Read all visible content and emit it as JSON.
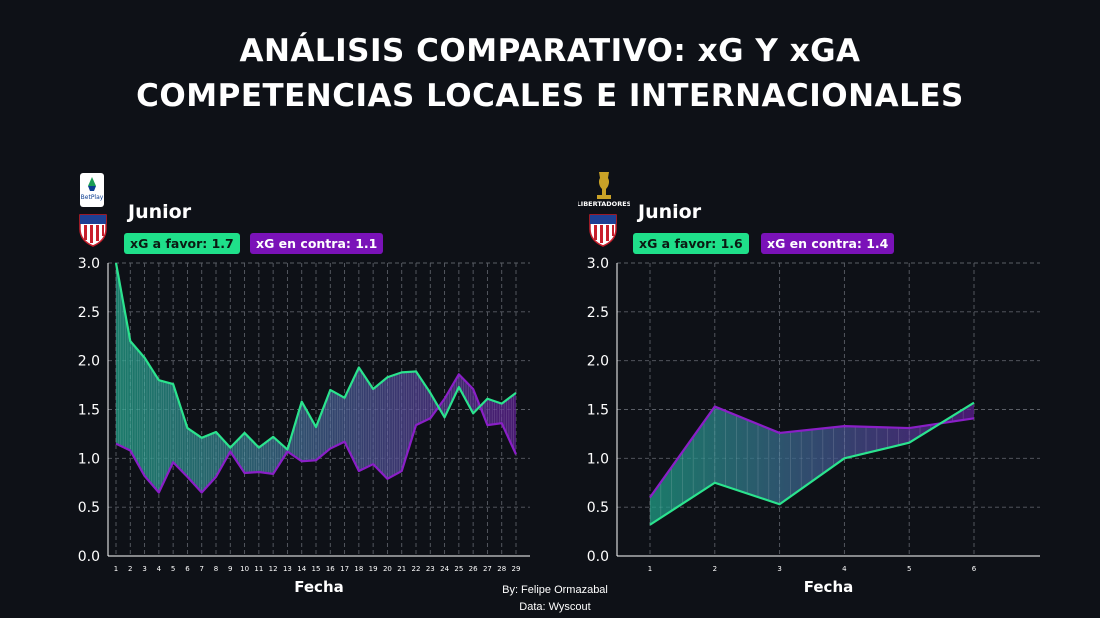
{
  "title_line1": "ANÁLISIS COMPARATIVO: xG Y xGA",
  "title_line2": "COMPETENCIAS LOCALES E INTERNACIONALES",
  "credits": {
    "by": "By: Felipe Ormazabal",
    "data": "Data: Wyscout"
  },
  "colors": {
    "favor": "#2be38e",
    "contra": "#8a1fc7",
    "background": "#0e1117",
    "fill_favor": "#1f9e86",
    "fill_contra": "#5b1d8f"
  },
  "icons": {
    "left_competition": "liga-betplay-logo",
    "right_competition": "copa-libertadores-trophy-logo",
    "team": "junior-crest-logo"
  },
  "logo_text": {
    "liga": "BetPlay",
    "libertadores": "LIBERTADORES"
  },
  "chart_data": [
    {
      "type": "line",
      "team": "Junior",
      "badge_favor": "xG a favor: 1.7",
      "badge_contra": "xG en contra: 1.1",
      "xlabel": "Fecha",
      "ylabel": "",
      "ylim": [
        0,
        3
      ],
      "yticks": [
        "0.0",
        "0.5",
        "1.0",
        "1.5",
        "2.0",
        "2.5",
        "3.0"
      ],
      "x": [
        1,
        2,
        3,
        4,
        5,
        6,
        7,
        8,
        9,
        10,
        11,
        12,
        13,
        14,
        15,
        16,
        17,
        18,
        19,
        20,
        21,
        22,
        23,
        24,
        25,
        26,
        27,
        28,
        29
      ],
      "series": [
        {
          "key": "favor",
          "values": [
            3.0,
            2.2,
            2.03,
            1.8,
            1.76,
            1.31,
            1.21,
            1.27,
            1.11,
            1.26,
            1.11,
            1.22,
            1.09,
            1.58,
            1.32,
            1.7,
            1.62,
            1.93,
            1.71,
            1.83,
            1.88,
            1.89,
            1.67,
            1.42,
            1.73,
            1.46,
            1.61,
            1.56,
            1.67
          ]
        },
        {
          "key": "contra",
          "values": [
            1.15,
            1.08,
            0.82,
            0.65,
            0.96,
            0.81,
            0.65,
            0.81,
            1.07,
            0.85,
            0.86,
            0.84,
            1.07,
            0.97,
            0.98,
            1.1,
            1.17,
            0.87,
            0.94,
            0.79,
            0.87,
            1.34,
            1.41,
            1.61,
            1.86,
            1.71,
            1.34,
            1.36,
            1.04
          ]
        }
      ],
      "grid": true
    },
    {
      "type": "line",
      "team": "Junior",
      "badge_favor": "xG a favor: 1.6",
      "badge_contra": "xG en contra: 1.4",
      "xlabel": "Fecha",
      "ylabel": "",
      "ylim": [
        0,
        3
      ],
      "yticks": [
        "0.0",
        "0.5",
        "1.0",
        "1.5",
        "2.0",
        "2.5",
        "3.0"
      ],
      "x": [
        1,
        2,
        3,
        4,
        5,
        6
      ],
      "series": [
        {
          "key": "favor",
          "values": [
            0.32,
            0.75,
            0.53,
            1.0,
            1.16,
            1.57
          ]
        },
        {
          "key": "contra",
          "values": [
            0.6,
            1.53,
            1.26,
            1.33,
            1.31,
            1.41
          ]
        }
      ],
      "grid": true
    }
  ]
}
